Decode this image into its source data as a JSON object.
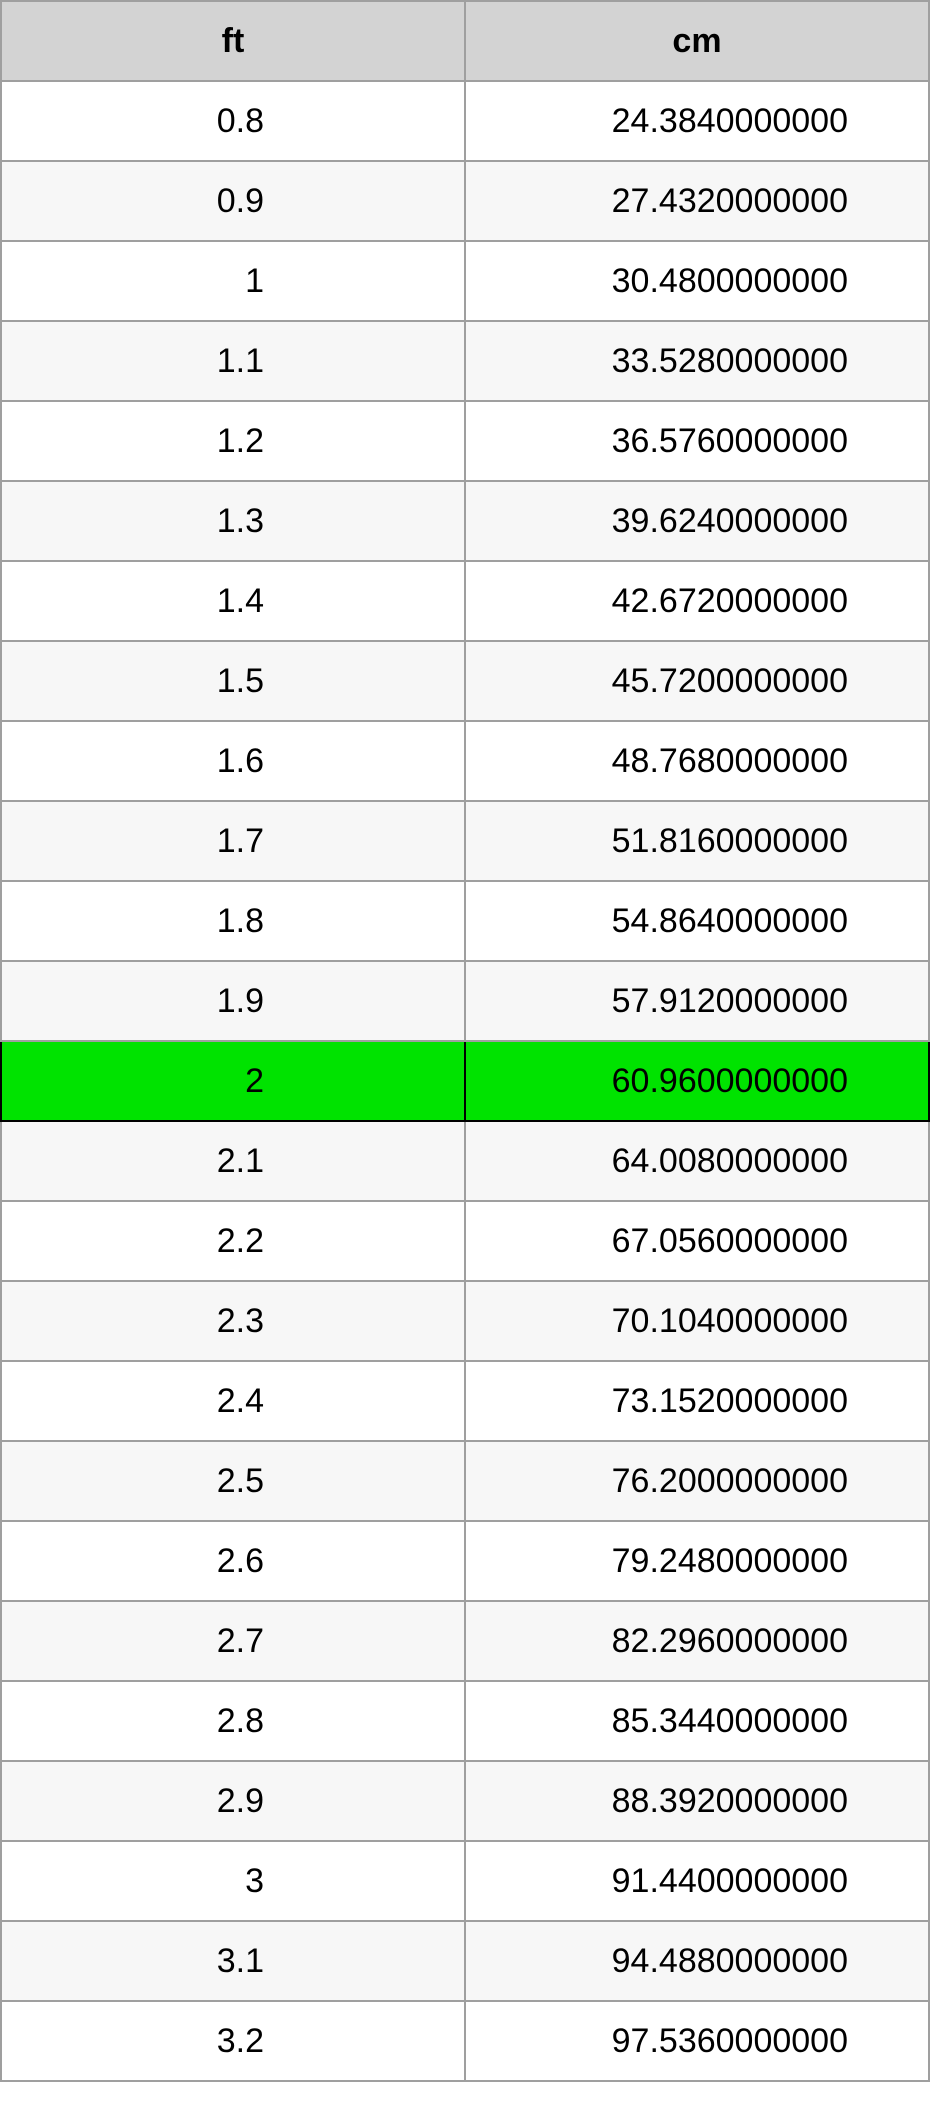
{
  "table": {
    "border_color": "#9f9f9f",
    "header_bg": "#d3d3d3",
    "row_bg_even": "#ffffff",
    "row_bg_odd": "#f7f7f7",
    "highlight_bg": "#00e300",
    "highlight_border": "#000000",
    "text_color": "#000000",
    "font_size": 34,
    "columns": [
      {
        "key": "ft",
        "label": "ft"
      },
      {
        "key": "cm",
        "label": "cm"
      }
    ],
    "highlight_index": 12,
    "rows": [
      {
        "ft": "0.8",
        "cm": "24.3840000000"
      },
      {
        "ft": "0.9",
        "cm": "27.4320000000"
      },
      {
        "ft": "1",
        "cm": "30.4800000000"
      },
      {
        "ft": "1.1",
        "cm": "33.5280000000"
      },
      {
        "ft": "1.2",
        "cm": "36.5760000000"
      },
      {
        "ft": "1.3",
        "cm": "39.6240000000"
      },
      {
        "ft": "1.4",
        "cm": "42.6720000000"
      },
      {
        "ft": "1.5",
        "cm": "45.7200000000"
      },
      {
        "ft": "1.6",
        "cm": "48.7680000000"
      },
      {
        "ft": "1.7",
        "cm": "51.8160000000"
      },
      {
        "ft": "1.8",
        "cm": "54.8640000000"
      },
      {
        "ft": "1.9",
        "cm": "57.9120000000"
      },
      {
        "ft": "2",
        "cm": "60.9600000000"
      },
      {
        "ft": "2.1",
        "cm": "64.0080000000"
      },
      {
        "ft": "2.2",
        "cm": "67.0560000000"
      },
      {
        "ft": "2.3",
        "cm": "70.1040000000"
      },
      {
        "ft": "2.4",
        "cm": "73.1520000000"
      },
      {
        "ft": "2.5",
        "cm": "76.2000000000"
      },
      {
        "ft": "2.6",
        "cm": "79.2480000000"
      },
      {
        "ft": "2.7",
        "cm": "82.2960000000"
      },
      {
        "ft": "2.8",
        "cm": "85.3440000000"
      },
      {
        "ft": "2.9",
        "cm": "88.3920000000"
      },
      {
        "ft": "3",
        "cm": "91.4400000000"
      },
      {
        "ft": "3.1",
        "cm": "94.4880000000"
      },
      {
        "ft": "3.2",
        "cm": "97.5360000000"
      }
    ]
  }
}
